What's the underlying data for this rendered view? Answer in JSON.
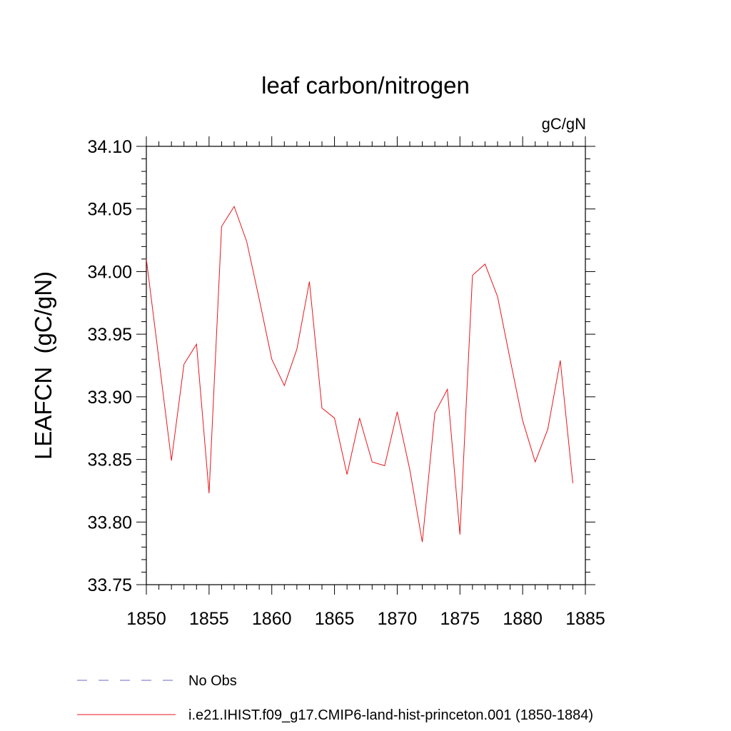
{
  "chart_data": {
    "type": "line",
    "title": "leaf carbon/nitrogen",
    "units_label": "gC/gN",
    "ylabel": "LEAFCN  (gC/gN)",
    "xlabel": "",
    "xlim": [
      1850,
      1885
    ],
    "ylim": [
      33.75,
      34.1
    ],
    "x_ticks": [
      1850,
      1855,
      1860,
      1865,
      1870,
      1875,
      1880,
      1885
    ],
    "x_tick_labels": [
      "1850",
      "1855",
      "1860",
      "1865",
      "1870",
      "1875",
      "1880",
      "1885"
    ],
    "y_ticks": [
      33.75,
      33.8,
      33.85,
      33.9,
      33.95,
      34.0,
      34.05,
      34.1
    ],
    "y_tick_labels": [
      "33.75",
      "33.80",
      "33.85",
      "33.90",
      "33.95",
      "34.00",
      "34.05",
      "34.10"
    ],
    "grid": false,
    "legend_position": "bottom",
    "series": [
      {
        "name": "i.e21.IHIST.f09_g17.CMIP6-land-hist-princeton.001 (1850-1884)",
        "color": "#e8161c",
        "style": "solid",
        "x": [
          1850,
          1851,
          1852,
          1853,
          1854,
          1855,
          1856,
          1857,
          1858,
          1859,
          1860,
          1861,
          1862,
          1863,
          1864,
          1865,
          1866,
          1867,
          1868,
          1869,
          1870,
          1871,
          1872,
          1873,
          1874,
          1875,
          1876,
          1877,
          1878,
          1879,
          1880,
          1881,
          1882,
          1883,
          1884
        ],
        "values": [
          34.01,
          33.93,
          33.849,
          33.926,
          33.942,
          33.823,
          34.036,
          34.052,
          34.024,
          33.978,
          33.93,
          33.909,
          33.938,
          33.992,
          33.891,
          33.883,
          33.838,
          33.883,
          33.848,
          33.845,
          33.888,
          33.842,
          33.784,
          33.887,
          33.906,
          33.79,
          33.997,
          34.006,
          33.98,
          33.93,
          33.881,
          33.848,
          33.874,
          33.929,
          33.831
        ]
      }
    ],
    "legend": [
      {
        "label": "No Obs",
        "color": "#6a6ac8",
        "style": "dashed"
      },
      {
        "label": "i.e21.IHIST.f09_g17.CMIP6-land-hist-princeton.001 (1850-1884)",
        "color": "#e8161c",
        "style": "solid"
      }
    ]
  }
}
